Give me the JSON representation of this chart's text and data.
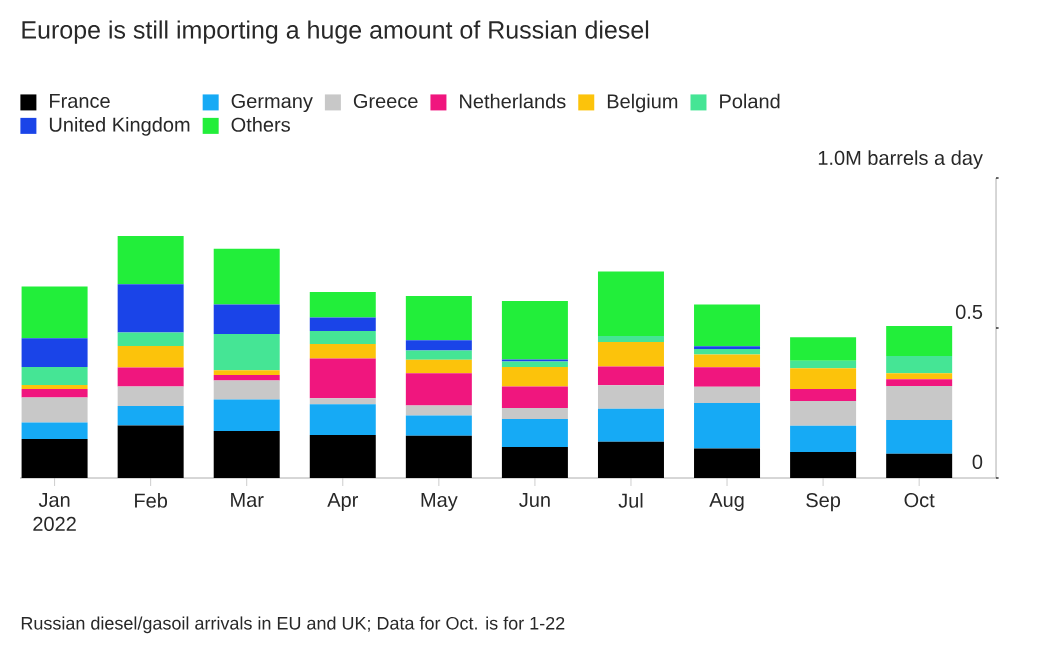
{
  "chart_data": {
    "type": "bar",
    "stacked": true,
    "title": "Europe is still importing a huge amount of Russian diesel",
    "categories": [
      "Jan 2022",
      "Feb",
      "Mar",
      "Apr",
      "May",
      "Jun",
      "Jul",
      "Aug",
      "Sep",
      "Oct"
    ],
    "series": [
      {
        "name": "France",
        "color": "#000000",
        "values": [
          0.13,
          0.175,
          0.157,
          0.143,
          0.141,
          0.103,
          0.121,
          0.098,
          0.087,
          0.081
        ]
      },
      {
        "name": "Germany",
        "color": "#16aaf5",
        "values": [
          0.055,
          0.065,
          0.105,
          0.103,
          0.067,
          0.094,
          0.11,
          0.152,
          0.087,
          0.112
        ]
      },
      {
        "name": "Greece",
        "color": "#c8c8c8",
        "values": [
          0.083,
          0.065,
          0.063,
          0.02,
          0.034,
          0.036,
          0.078,
          0.054,
          0.083,
          0.114
        ]
      },
      {
        "name": "Netherlands",
        "color": "#f0167e",
        "values": [
          0.029,
          0.063,
          0.018,
          0.132,
          0.107,
          0.072,
          0.063,
          0.065,
          0.04,
          0.022
        ]
      },
      {
        "name": "Belgium",
        "color": "#fcc30b",
        "values": [
          0.013,
          0.072,
          0.016,
          0.049,
          0.045,
          0.065,
          0.081,
          0.043,
          0.069,
          0.02
        ]
      },
      {
        "name": "Poland",
        "color": "#45e595",
        "values": [
          0.06,
          0.045,
          0.121,
          0.043,
          0.031,
          0.018,
          0.02,
          0.018,
          0.025,
          0.058
        ]
      },
      {
        "name": "United Kingdom",
        "color": "#1a44e8",
        "values": [
          0.096,
          0.161,
          0.098,
          0.045,
          0.034,
          0.007,
          0,
          0.009,
          0,
          0
        ]
      },
      {
        "name": "Others",
        "color": "#22ee3a",
        "values": [
          0.172,
          0.161,
          0.186,
          0.085,
          0.148,
          0.195,
          0.215,
          0.139,
          0.078,
          0.1
        ]
      }
    ],
    "ylim": [
      0,
      1.0
    ],
    "yticks": [
      0,
      0.5,
      {
        "value": 1.0,
        "label": "1.0M barrels a day"
      }
    ],
    "legend": "top",
    "annotations": [
      "Russian diesel/gasoil arrivals in EU and UK; Data for Oct. is for 1-22"
    ]
  }
}
